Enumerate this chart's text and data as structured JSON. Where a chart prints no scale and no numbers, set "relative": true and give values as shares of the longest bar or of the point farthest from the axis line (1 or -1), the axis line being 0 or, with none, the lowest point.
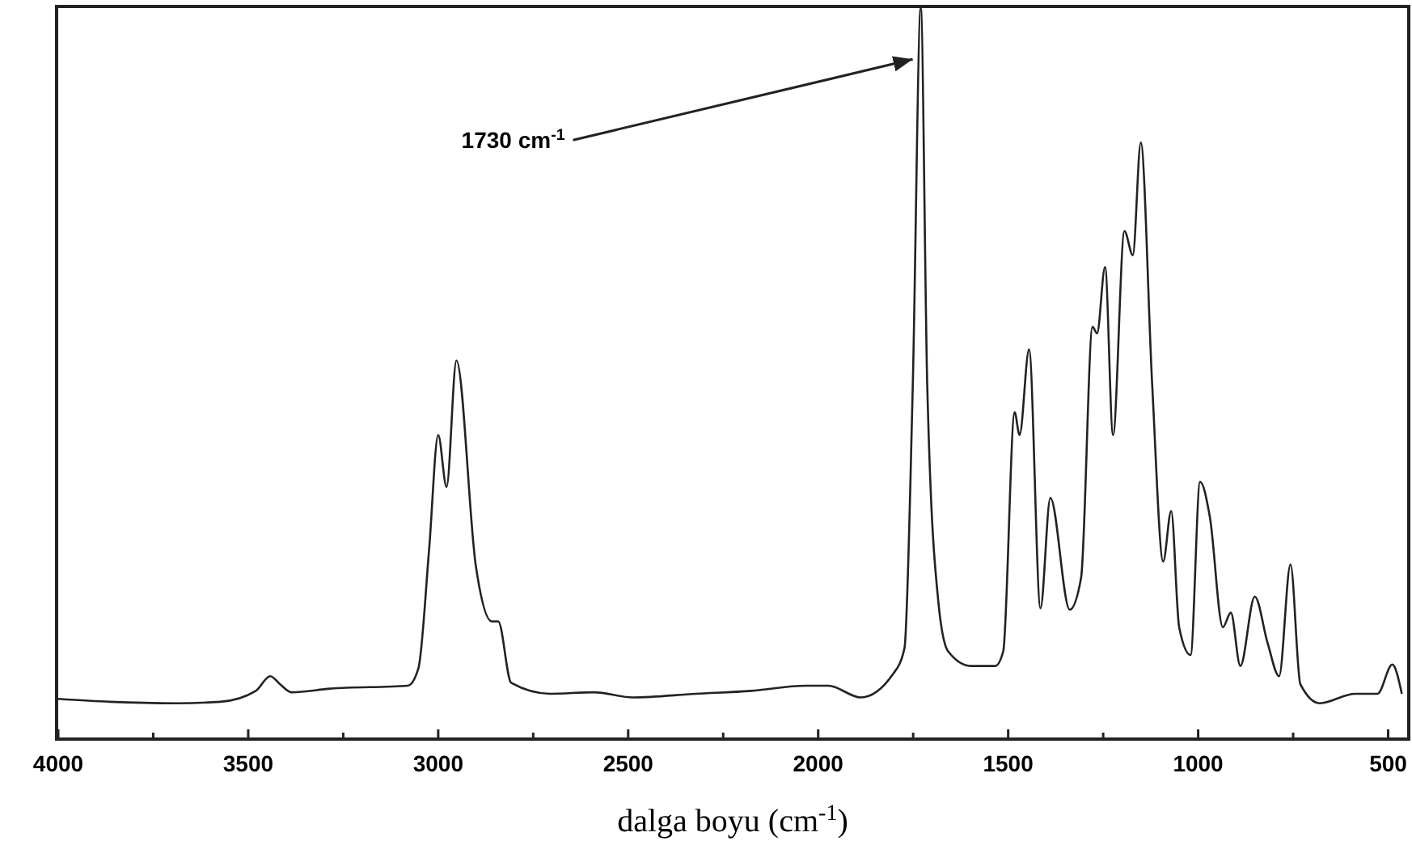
{
  "chart_data": {
    "type": "line",
    "relative": true,
    "xlabel": "dalga boyu (cm$^{-1}$)",
    "xlim": [
      4000,
      450
    ],
    "xticks": [
      4000,
      {
        "value": 3750,
        "label": null
      },
      3500,
      {
        "value": 3250,
        "label": null
      },
      3000,
      {
        "value": 2750,
        "label": null
      },
      2500,
      {
        "value": 2250,
        "label": null
      },
      2000,
      {
        "value": 1750,
        "label": null
      },
      1500,
      {
        "value": 1250,
        "label": null
      },
      1000,
      {
        "value": 750,
        "label": null
      },
      500
    ],
    "annotations": [
      {
        "text": "1730 cm$^{-1}$",
        "x": 1730,
        "y": 0.93
      }
    ],
    "series": [
      {
        "color": "#222222",
        "x": [
          4000,
          3864,
          3690,
          3574,
          3480,
          3442,
          3416,
          3386,
          3284,
          3080,
          3052,
          3024,
          3000,
          2978,
          2952,
          2901,
          2859,
          2842,
          2808,
          2705,
          2590,
          2488,
          2322,
          2177,
          2033,
          1973,
          1888,
          1803,
          1773,
          1751,
          1730,
          1713,
          1683,
          1658,
          1598,
          1534,
          1513,
          1483,
          1470,
          1445,
          1415,
          1389,
          1338,
          1308,
          1278,
          1266,
          1245,
          1224,
          1194,
          1172,
          1151,
          1121,
          1092,
          1071,
          1050,
          1020,
          995,
          969,
          935,
          914,
          889,
          851,
          817,
          787,
          757,
          731,
          680,
          587,
          528,
          489,
          464
        ],
        "values": [
          0.055,
          0.051,
          0.049,
          0.051,
          0.066,
          0.086,
          0.075,
          0.064,
          0.069,
          0.073,
          0.097,
          0.259,
          0.416,
          0.345,
          0.518,
          0.237,
          0.161,
          0.161,
          0.077,
          0.062,
          0.064,
          0.057,
          0.062,
          0.066,
          0.073,
          0.073,
          0.057,
          0.089,
          0.124,
          0.485,
          1.0,
          0.485,
          0.184,
          0.12,
          0.1,
          0.1,
          0.12,
          0.447,
          0.416,
          0.533,
          0.179,
          0.33,
          0.177,
          0.221,
          0.564,
          0.555,
          0.646,
          0.416,
          0.695,
          0.662,
          0.816,
          0.485,
          0.243,
          0.312,
          0.153,
          0.115,
          0.352,
          0.303,
          0.153,
          0.173,
          0.1,
          0.195,
          0.131,
          0.086,
          0.239,
          0.075,
          0.049,
          0.062,
          0.062,
          0.102,
          0.062
        ]
      }
    ]
  }
}
